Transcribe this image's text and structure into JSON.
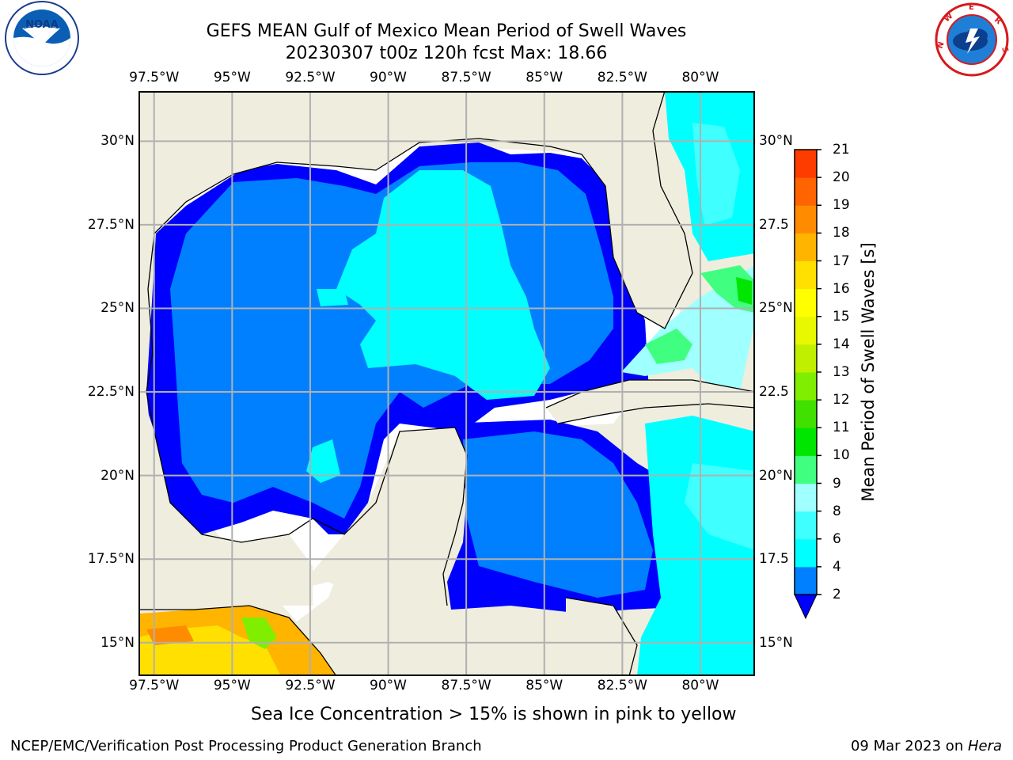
{
  "header": {
    "title_line1": "GEFS MEAN Gulf of Mexico Mean Period of Swell Waves",
    "title_line2": "20230307 t00z 120h fcst   Max: 18.66"
  },
  "logos": {
    "noaa": {
      "name": "noaa-logo",
      "text": "NOAA"
    },
    "nws": {
      "name": "nws-logo",
      "text": "NATIONAL WEATHER SERVICE"
    }
  },
  "axes": {
    "lon_labels": [
      "97.5°W",
      "95°W",
      "92.5°W",
      "90°W",
      "87.5°W",
      "85°W",
      "82.5°W",
      "80°W"
    ],
    "lon_values": [
      -97.5,
      -95,
      -92.5,
      -90,
      -87.5,
      -85,
      -82.5,
      -80
    ],
    "lat_labels_left": [
      "30°N",
      "27.5°N",
      "25°N",
      "22.5°N",
      "20°N",
      "17.5°N",
      "15°N"
    ],
    "lat_labels_right": [
      "30°N",
      "27.5",
      "25°N",
      "22.5",
      "20°N",
      "17.5",
      "15°N"
    ],
    "lat_values": [
      30,
      27.5,
      25,
      22.5,
      20,
      17.5,
      15
    ],
    "lon_range": [
      -98,
      -78.25
    ],
    "lat_range": [
      14,
      31.5
    ],
    "grid": true
  },
  "colorbar": {
    "title": "Mean Period of Swell Waves [s]",
    "levels": [
      2,
      4,
      6,
      8,
      9,
      10,
      11,
      12,
      13,
      14,
      15,
      16,
      17,
      18,
      19,
      20,
      21
    ],
    "labels": [
      "2",
      "4",
      "6",
      "8",
      "9",
      "10",
      "11",
      "12",
      "13",
      "14",
      "15",
      "16",
      "17",
      "18",
      "19",
      "20",
      "21"
    ],
    "colors": [
      "#0080ff",
      "#00ffff",
      "#40ffff",
      "#a0ffff",
      "#40ff80",
      "#00e600",
      "#40e000",
      "#80ee00",
      "#c0f000",
      "#e8f800",
      "#ffff00",
      "#ffe000",
      "#ffb400",
      "#ff8c00",
      "#ff6400",
      "#ff3c00",
      "#ff0000"
    ],
    "under_color": "#0000ff"
  },
  "map_colors": {
    "land": "#efedde",
    "nodata": "#ffffff"
  },
  "note": "Sea Ice Concentration > 15% is shown in pink to yellow",
  "footer": {
    "left": "NCEP/EMC/Verification Post Processing Product Generation Branch",
    "right_date": "09 Mar 2023 on ",
    "right_host": "Hera"
  }
}
